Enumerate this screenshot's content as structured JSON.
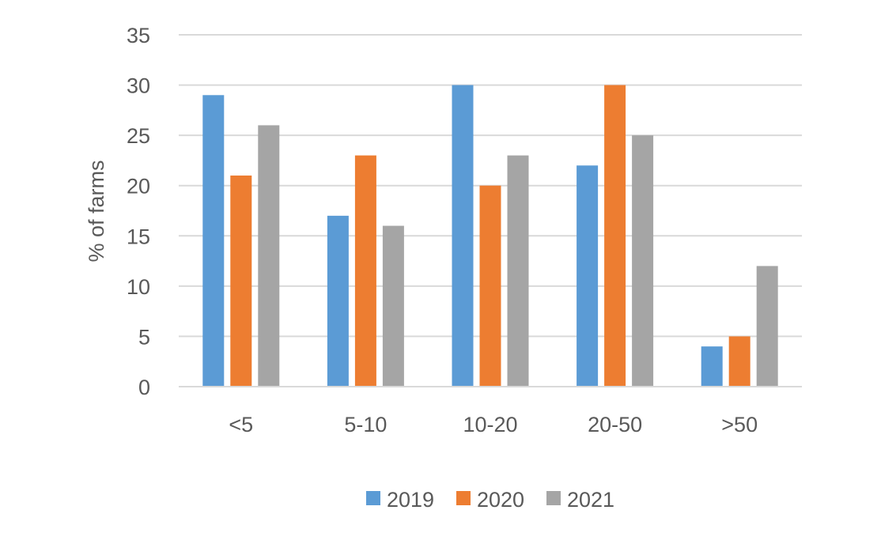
{
  "chart_data": {
    "type": "bar",
    "title": "",
    "xlabel": "",
    "ylabel": "% of farms",
    "categories": [
      "<5",
      "5-10",
      "10-20",
      "20-50",
      ">50"
    ],
    "series": [
      {
        "name": "2019",
        "color": "#5B9BD5",
        "values": [
          29,
          17,
          30,
          22,
          4
        ]
      },
      {
        "name": "2020",
        "color": "#ED7D31",
        "values": [
          21,
          23,
          20,
          30,
          5
        ]
      },
      {
        "name": "2021",
        "color": "#A5A5A5",
        "values": [
          26,
          16,
          23,
          25,
          12
        ]
      }
    ],
    "ylim": [
      0,
      35
    ],
    "yticks": [
      0,
      5,
      10,
      15,
      20,
      25,
      30,
      35
    ],
    "grid": true,
    "legend_position": "bottom"
  }
}
